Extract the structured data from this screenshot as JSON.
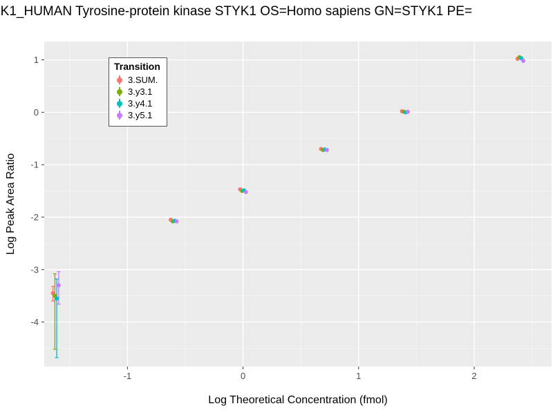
{
  "chart_data": {
    "type": "scatter",
    "title": "YK1_HUMAN Tyrosine-protein kinase STYK1 OS=Homo sapiens GN=STYK1 PE=",
    "xlabel": "Log Theoretical Concentration (fmol)",
    "ylabel": "Log Peak Area Ratio",
    "xlim": [
      -1.72,
      2.67
    ],
    "ylim": [
      -4.85,
      1.35
    ],
    "x_major_ticks": [
      -1,
      0,
      1,
      2
    ],
    "x_minor_ticks": [
      -1.5,
      -0.5,
      0.5,
      1.5,
      2.5
    ],
    "y_major_ticks": [
      1,
      0,
      -1,
      -2,
      -3,
      -4
    ],
    "y_minor_ticks": [
      0.5,
      -0.5,
      -1.5,
      -2.5,
      -3.5,
      -4.5
    ],
    "grid": true,
    "legend": {
      "title": "Transition",
      "position": "top-left-inside"
    },
    "dodge": [
      -0.025,
      -0.008,
      0.008,
      0.025
    ],
    "series": [
      {
        "name": "3.SUM.",
        "color": "#F8766D",
        "points": [
          {
            "x": -1.62,
            "y": -3.45,
            "ymin": -3.6,
            "ymax": -3.32
          },
          {
            "x": -0.6,
            "y": -2.05
          },
          {
            "x": 0.0,
            "y": -1.47
          },
          {
            "x": 0.7,
            "y": -0.7
          },
          {
            "x": 1.4,
            "y": 0.02
          },
          {
            "x": 2.4,
            "y": 1.02
          }
        ]
      },
      {
        "name": "3.y3.1",
        "color": "#7CAE00",
        "points": [
          {
            "x": -1.62,
            "y": -3.5,
            "ymin": -4.52,
            "ymax": -3.08
          },
          {
            "x": -0.6,
            "y": -2.08
          },
          {
            "x": 0.0,
            "y": -1.5
          },
          {
            "x": 0.7,
            "y": -0.72
          },
          {
            "x": 1.4,
            "y": 0.01
          },
          {
            "x": 2.4,
            "y": 1.05
          }
        ]
      },
      {
        "name": "3.y4.1",
        "color": "#00BFC4",
        "points": [
          {
            "x": -1.62,
            "y": -3.55,
            "ymin": -4.68,
            "ymax": -3.18
          },
          {
            "x": -0.6,
            "y": -2.07
          },
          {
            "x": 0.0,
            "y": -1.49
          },
          {
            "x": 0.7,
            "y": -0.71
          },
          {
            "x": 1.4,
            "y": 0.0
          },
          {
            "x": 2.4,
            "y": 1.03
          }
        ]
      },
      {
        "name": "3.y5.1",
        "color": "#C77CFF",
        "points": [
          {
            "x": -1.62,
            "y": -3.3,
            "ymin": -3.66,
            "ymax": -3.04
          },
          {
            "x": -0.6,
            "y": -2.08
          },
          {
            "x": 0.0,
            "y": -1.52
          },
          {
            "x": 0.7,
            "y": -0.72
          },
          {
            "x": 1.4,
            "y": 0.01
          },
          {
            "x": 2.4,
            "y": 0.98
          }
        ]
      }
    ],
    "panel_bg": "#EBEBEB",
    "grid_major_color": "#FFFFFF",
    "grid_minor_color": "#F4F4F4",
    "tick_color": "#333333",
    "tick_label_color": "#4D4D4D"
  }
}
